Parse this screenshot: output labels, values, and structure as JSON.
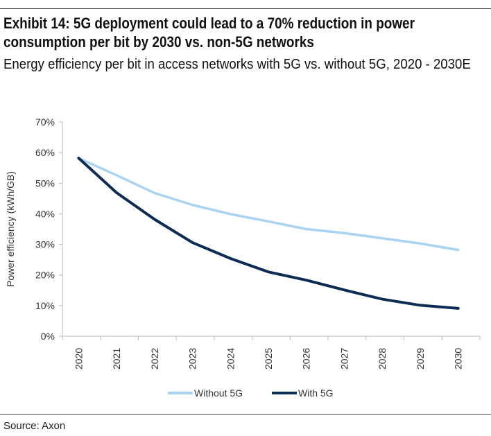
{
  "header": {
    "title": "Exhibit 14: 5G deployment could lead to a 70% reduction in power consumption per bit by 2030 vs. non-5G networks",
    "subtitle": "Energy efficiency per bit in access networks with 5G vs. without 5G, 2020 - 2030E"
  },
  "footer": {
    "source": "Source: Axon"
  },
  "chart_data": {
    "type": "line",
    "title": "",
    "xlabel": "",
    "ylabel": "Power efficiency (kWh/GB)",
    "ylim": [
      0,
      70
    ],
    "yticks": [
      "0%",
      "10%",
      "20%",
      "30%",
      "40%",
      "50%",
      "60%",
      "70%"
    ],
    "categories": [
      "2020",
      "2021",
      "2022",
      "2023",
      "2024",
      "2025",
      "2026",
      "2027",
      "2028",
      "2029",
      "2030"
    ],
    "grid": false,
    "legend_position": "bottom",
    "series": [
      {
        "name": "Without 5G",
        "color": "#a9d3f0",
        "values": [
          58.2,
          52.6,
          46.8,
          42.9,
          39.9,
          37.5,
          35.0,
          33.7,
          32.0,
          30.3,
          28.2
        ]
      },
      {
        "name": "With 5G",
        "color": "#0c2c55",
        "values": [
          58.2,
          46.9,
          38.2,
          30.6,
          25.4,
          21.0,
          18.3,
          15.1,
          12.1,
          10.1,
          9.1
        ]
      }
    ]
  }
}
